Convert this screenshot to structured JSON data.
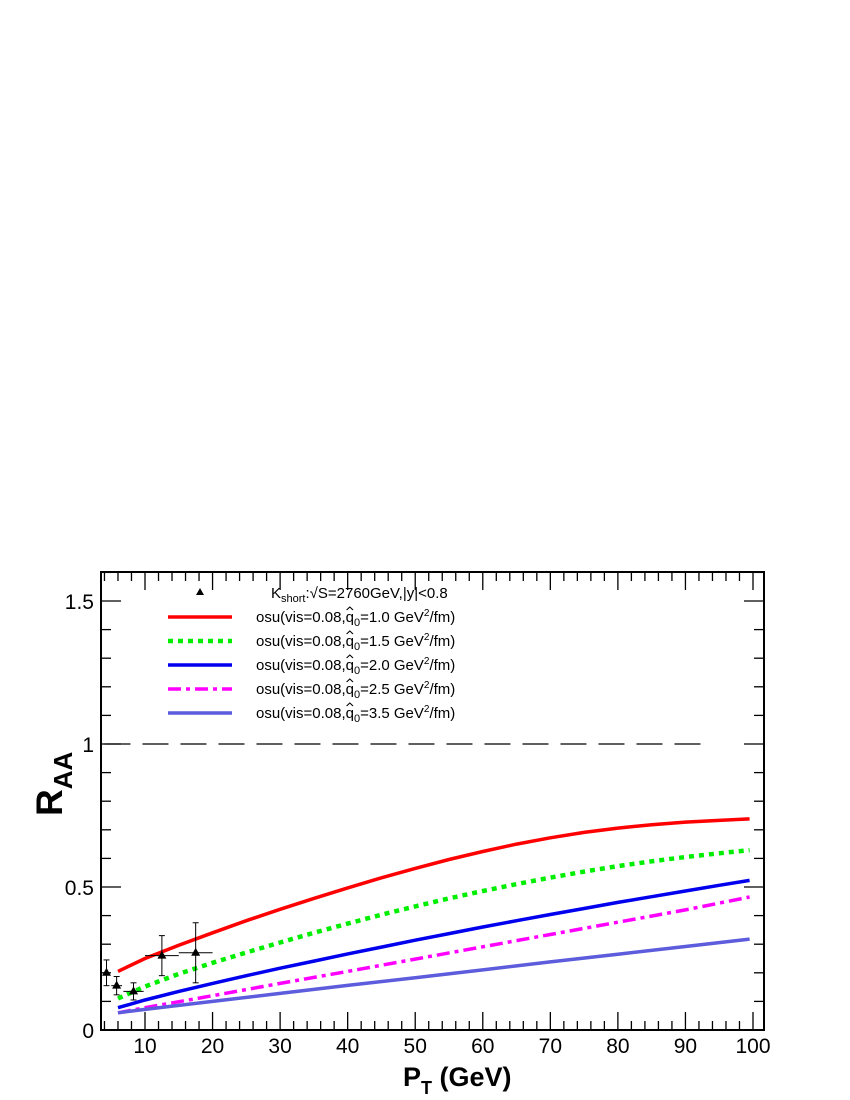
{
  "chart_data": {
    "type": "line",
    "xlabel": {
      "main": "P",
      "sub": "T",
      "rest": " (GeV)"
    },
    "ylabel": {
      "main": "R",
      "sub": "AA"
    },
    "xlim": [
      3.8,
      100.5
    ],
    "ylim": [
      0,
      1.6
    ],
    "x_ticks": [
      10,
      20,
      30,
      40,
      50,
      60,
      70,
      80,
      90,
      100
    ],
    "x_tick_labels": [
      "10",
      "20",
      "30",
      "40",
      "50",
      "60",
      "70",
      "80",
      "90",
      "100"
    ],
    "y_ticks": [
      0,
      0.5,
      1,
      1.5
    ],
    "y_tick_labels": [
      "0",
      "0.5",
      "1",
      "1.5"
    ],
    "reference_line": {
      "y": 1.0,
      "style": "long-dashed",
      "x_from": 4,
      "x_to": 94
    },
    "data_points": {
      "marker": "triangle",
      "legend": {
        "sym": "K",
        "sub": "short",
        "rest": ":√S=2760GeV,|y|<0.8"
      },
      "points": [
        {
          "x": 4.3,
          "y": 0.2,
          "xerr": 0.4,
          "yerr": 0.045
        },
        {
          "x": 5.8,
          "y": 0.155,
          "xerr": 0.8,
          "yerr": 0.032
        },
        {
          "x": 8.3,
          "y": 0.135,
          "xerr": 1.5,
          "yerr": 0.03
        },
        {
          "x": 12.5,
          "y": 0.26,
          "xerr": 2.5,
          "yerr": 0.07
        },
        {
          "x": 17.5,
          "y": 0.27,
          "xerr": 2.5,
          "yerr": 0.105
        }
      ]
    },
    "series": [
      {
        "name": {
          "pre": "osu(vis=0.08,",
          "q": "q",
          "sub": "0",
          "mid": "=1.0 GeV",
          "sup": "2",
          "post": "/fm)"
        },
        "color": "#ff0000",
        "style": "solid",
        "x": [
          6,
          10,
          15,
          20,
          25,
          30,
          35,
          40,
          45,
          50,
          55,
          60,
          65,
          70,
          75,
          80,
          85,
          90,
          95,
          99.5
        ],
        "y": [
          0.205,
          0.25,
          0.296,
          0.34,
          0.382,
          0.422,
          0.46,
          0.497,
          0.532,
          0.565,
          0.596,
          0.624,
          0.65,
          0.672,
          0.691,
          0.706,
          0.718,
          0.727,
          0.733,
          0.738
        ]
      },
      {
        "name": {
          "pre": "osu(vis=0.08,",
          "q": "q",
          "sub": "0",
          "mid": "=1.5 GeV",
          "sup": "2",
          "post": "/fm)"
        },
        "color": "#00ee00",
        "style": "dotted",
        "x": [
          6,
          10,
          15,
          20,
          25,
          30,
          35,
          40,
          45,
          50,
          55,
          60,
          65,
          70,
          75,
          80,
          85,
          90,
          95,
          99.5
        ],
        "y": [
          0.11,
          0.152,
          0.196,
          0.235,
          0.271,
          0.306,
          0.34,
          0.372,
          0.403,
          0.432,
          0.46,
          0.486,
          0.51,
          0.533,
          0.554,
          0.573,
          0.59,
          0.605,
          0.618,
          0.629
        ]
      },
      {
        "name": {
          "pre": "osu(vis=0.08,",
          "q": "q",
          "sub": "0",
          "mid": "=2.0 GeV",
          "sup": "2",
          "post": "/fm)"
        },
        "color": "#0000ee",
        "style": "solid",
        "x": [
          6,
          10,
          15,
          20,
          25,
          30,
          35,
          40,
          45,
          50,
          55,
          60,
          65,
          70,
          75,
          80,
          85,
          90,
          95,
          99.5
        ],
        "y": [
          0.078,
          0.105,
          0.135,
          0.163,
          0.19,
          0.216,
          0.241,
          0.266,
          0.29,
          0.314,
          0.337,
          0.36,
          0.382,
          0.404,
          0.425,
          0.446,
          0.466,
          0.486,
          0.506,
          0.523
        ]
      },
      {
        "name": {
          "pre": "osu(vis=0.08,",
          "q": "q",
          "sub": "0",
          "mid": "=2.5 GeV",
          "sup": "2",
          "post": "/fm)"
        },
        "color": "#ff00ff",
        "style": "dashdot",
        "x": [
          6,
          10,
          20,
          30,
          40,
          50,
          60,
          70,
          80,
          90,
          99.5
        ],
        "y": [
          0.06,
          0.078,
          0.12,
          0.163,
          0.205,
          0.248,
          0.291,
          0.334,
          0.377,
          0.42,
          0.465
        ]
      },
      {
        "name": {
          "pre": "osu(vis=0.08,",
          "q": "q",
          "sub": "0",
          "mid": "=3.5 GeV",
          "sup": "2",
          "post": "/fm)"
        },
        "color": "#5c5cdc",
        "style": "solid",
        "x": [
          6,
          10,
          20,
          30,
          40,
          50,
          60,
          70,
          80,
          90,
          99.5
        ],
        "y": [
          0.06,
          0.072,
          0.1,
          0.128,
          0.156,
          0.183,
          0.21,
          0.238,
          0.265,
          0.292,
          0.318
        ]
      }
    ]
  }
}
